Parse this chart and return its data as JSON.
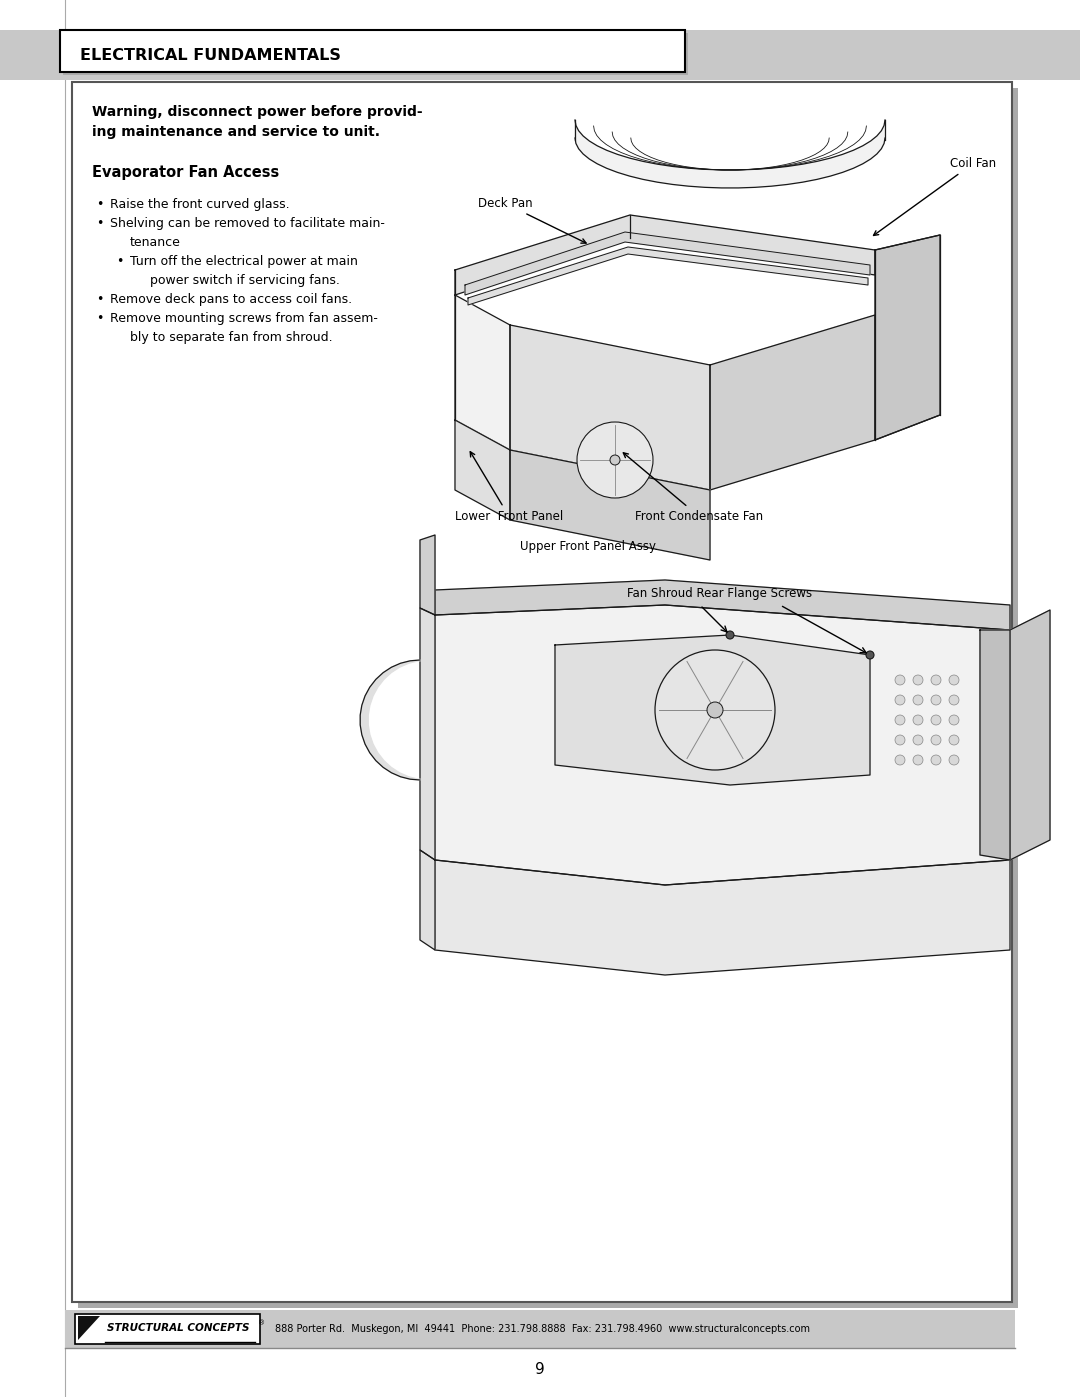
{
  "page_bg": "#ffffff",
  "header_text": "ELECTRICAL FUNDAMENTALS",
  "warning_text_line1": "Warning, disconnect power before provid-",
  "warning_text_line2": "ing maintenance and service to unit.",
  "section_title": "Evaporator Fan Access",
  "bullets": [
    {
      "text": "Raise the front curved glass.",
      "indent": 0
    },
    {
      "text": "Shelving can be removed to facilitate main-",
      "indent": 0
    },
    {
      "text": "tenance",
      "indent": 1
    },
    {
      "text": "Turn off the electrical power at main",
      "indent": 1
    },
    {
      "text": "power switch if servicing fans.",
      "indent": 2
    },
    {
      "text": "Remove deck pans to access coil fans.",
      "indent": 0
    },
    {
      "text": "Remove mounting screws from fan assem-",
      "indent": 0
    },
    {
      "text": "bly to separate fan from shroud.",
      "indent": 1
    }
  ],
  "label_coil_fan": "Coil Fan",
  "label_deck_pan": "Deck Pan",
  "label_lower_front": "Lower  Front Panel",
  "label_front_cond": "Front Condensate Fan",
  "label_upper_front": "Upper Front Panel Assy.",
  "label_fan_shroud": "Fan Shroud Rear Flange Screws",
  "footer_address": "888 Porter Rd.  Muskegon, MI  49441  Phone: 231.798.8888  Fax: 231.798.4960  www.structuralconcepts.com",
  "footer_logo_text": "STRUCTURAL CONCEPTS",
  "page_number": "9",
  "gray_bar_color": "#c8c8c8",
  "light_gray": "#d4d4d4"
}
